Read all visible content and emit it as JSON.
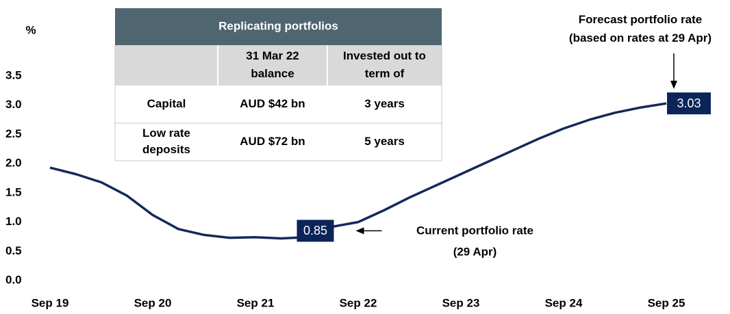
{
  "chart_data": {
    "type": "line",
    "y_label": "%",
    "ylim": [
      0,
      3.5
    ],
    "yticks": [
      {
        "value": 0,
        "label": "0.0"
      },
      0.5,
      {
        "value": 1,
        "label": "1.0"
      },
      1.5,
      {
        "value": 2,
        "label": "2.0"
      },
      2.5,
      {
        "value": 3,
        "label": "3.0"
      },
      3.5
    ],
    "xlim": [
      "2019-09",
      "2025-09"
    ],
    "xticks": [
      {
        "value": "2019-09",
        "label": "Sep 19"
      },
      {
        "value": "2020-09",
        "label": "Sep 20"
      },
      {
        "value": "2021-09",
        "label": "Sep 21"
      },
      {
        "value": "2022-09",
        "label": "Sep 22"
      },
      {
        "value": "2023-09",
        "label": "Sep 23"
      },
      {
        "value": "2024-09",
        "label": "Sep 24"
      },
      {
        "value": "2025-09",
        "label": "Sep 25"
      }
    ],
    "series": [
      {
        "color": "#14285a",
        "x": [
          "2019-09",
          "2019-12",
          "2020-03",
          "2020-06",
          "2020-09",
          "2020-12",
          "2021-03",
          "2021-06",
          "2021-09",
          "2021-12",
          "2022-03",
          "2022-04",
          "2022-06",
          "2022-09",
          "2022-12",
          "2023-03",
          "2023-06",
          "2023-09",
          "2023-12",
          "2024-03",
          "2024-06",
          "2024-09",
          "2024-12",
          "2025-03",
          "2025-06",
          "2025-09"
        ],
        "values": [
          1.93,
          1.82,
          1.68,
          1.45,
          1.12,
          0.88,
          0.78,
          0.73,
          0.74,
          0.72,
          0.74,
          0.85,
          0.92,
          1.0,
          1.2,
          1.42,
          1.62,
          1.82,
          2.02,
          2.22,
          2.42,
          2.6,
          2.75,
          2.87,
          2.96,
          3.03
        ]
      }
    ],
    "annotations": [
      {
        "x": "2022-04",
        "text": [
          "Current portfolio rate",
          "(29 Apr)"
        ]
      },
      {
        "x": "2025-09",
        "text": [
          "Forecast portfolio rate",
          "(based on rates at 29 Apr)"
        ]
      }
    ]
  },
  "table": {
    "title": "Replicating portfolios",
    "header": [
      [
        "31 Mar 22",
        "balance"
      ],
      [
        "Invested out to",
        "term of"
      ]
    ],
    "rows": [
      {
        "label": [
          "Capital"
        ],
        "cells": [
          "AUD $42 bn",
          "3 years"
        ]
      },
      {
        "label": [
          "Low rate",
          "deposits"
        ],
        "cells": [
          "AUD $72 bn",
          "5 years"
        ]
      }
    ]
  }
}
